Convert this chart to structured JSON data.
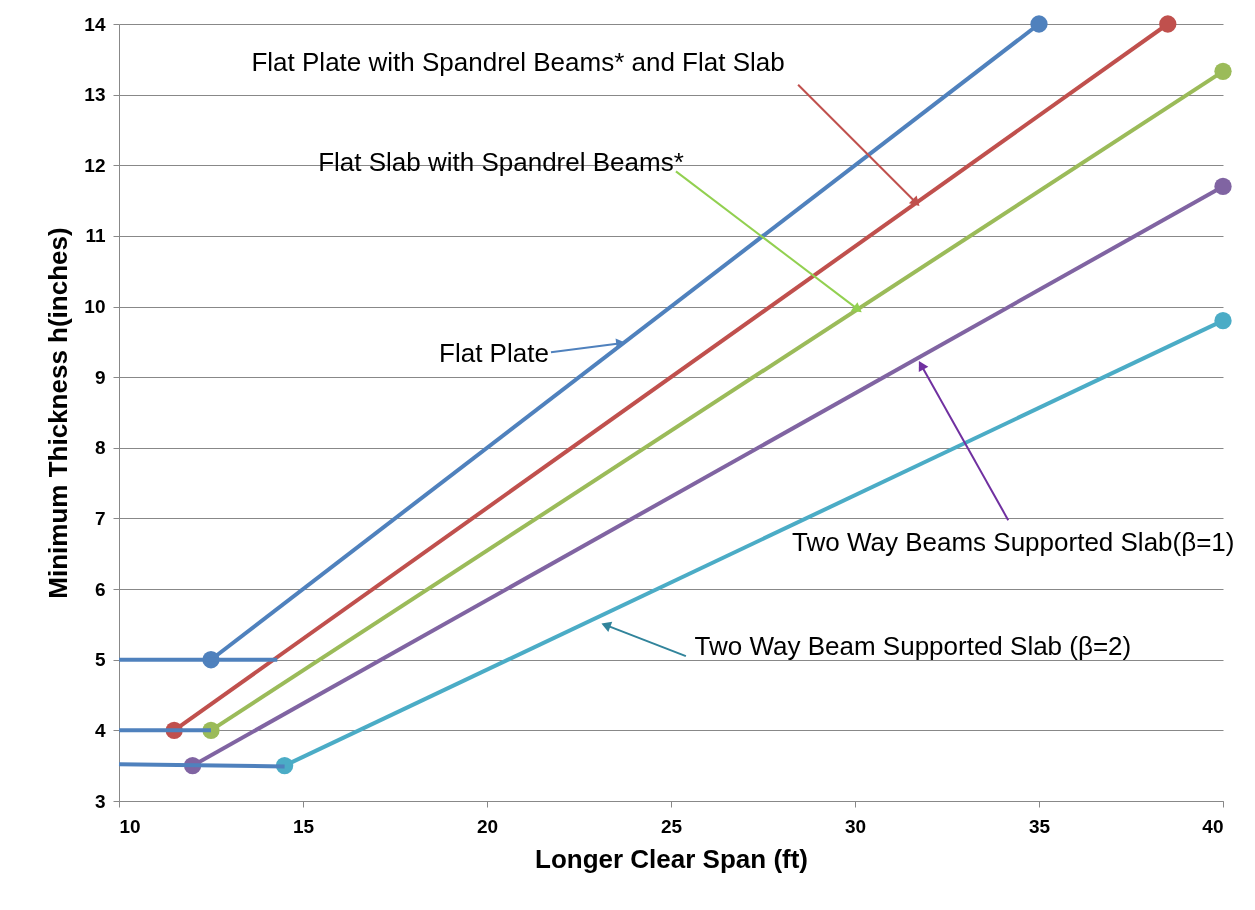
{
  "chart_data": {
    "type": "line",
    "xlabel": "Longer Clear Span (ft)",
    "ylabel": "Minimum Thickness h(inches)",
    "xlim": [
      10,
      40
    ],
    "xticks": [
      10,
      15,
      20,
      25,
      30,
      35,
      40
    ],
    "ylim": [
      3,
      14
    ],
    "yticks": [
      3,
      4,
      5,
      6,
      7,
      8,
      9,
      10,
      11,
      12,
      13,
      14
    ],
    "grid": "y",
    "marker": "circle",
    "line_style": "solid",
    "series": [
      {
        "color": "#4f81bd",
        "x": [
          12.5,
          35
        ],
        "values": [
          5,
          14
        ]
      },
      {
        "color": "#c0504d",
        "x": [
          11.5,
          38.5
        ],
        "values": [
          4,
          14
        ]
      },
      {
        "color": "#9bbb59",
        "x": [
          12.5,
          40
        ],
        "values": [
          4,
          13.33
        ]
      },
      {
        "color": "#8064a2",
        "x": [
          12,
          40
        ],
        "values": [
          3.5,
          11.7
        ]
      },
      {
        "color": "#4bacc6",
        "x": [
          14.5,
          40
        ],
        "values": [
          3.5,
          9.8
        ]
      },
      {
        "color": "#4f81bd",
        "marker": "none",
        "x": [
          10,
          14.3
        ],
        "values": [
          5,
          5
        ]
      },
      {
        "color": "#4f81bd",
        "marker": "none",
        "x": [
          10,
          12.5
        ],
        "values": [
          4,
          4
        ]
      },
      {
        "color": "#4f81bd",
        "marker": "none",
        "x": [
          10,
          14.5
        ],
        "values": [
          3.52,
          3.49
        ]
      }
    ],
    "annotations": [
      {
        "text": "Flat Plate with Spandrel Beams* and Flat Slab",
        "x": 31.66,
        "y": 11.47
      },
      {
        "text": "Flat Slab with Spandrel Beams*",
        "x": 30.08,
        "y": 9.96
      },
      {
        "text": "Flat Plate",
        "x": 23.64,
        "y": 9.48
      },
      {
        "text": "Two Way Beams Supported Slab(β=1)",
        "x": 31.8,
        "y": 9.17
      },
      {
        "text": "Two Way Beam Supported Slab (β=2)",
        "x": 23.23,
        "y": 5.49
      }
    ]
  }
}
